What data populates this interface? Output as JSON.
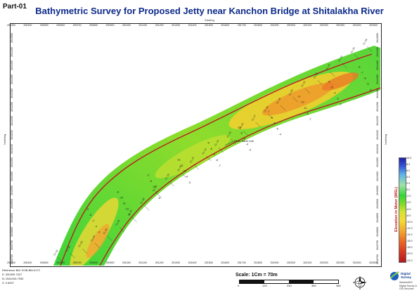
{
  "header": {
    "part": "Part-01",
    "title": "Bathymetric Survey for Proposed Jetty near Kanchon Bridge at Shitalakha River"
  },
  "axes": {
    "easting_title": "Easting",
    "northing_title": "Northing",
    "easting_ticks": [
      "250300",
      "250400",
      "250500",
      "250600",
      "250700",
      "250800",
      "250900",
      "251000",
      "251100",
      "251200",
      "251300",
      "251400",
      "251500",
      "251600",
      "251700",
      "251800",
      "251900",
      "252000",
      "252100",
      "252200",
      "252300",
      "252400",
      "252500"
    ],
    "northing_ticks": [
      "2641500",
      "2641450",
      "2641400",
      "2641350",
      "2641300",
      "2641250",
      "2641200",
      "2641150",
      "2641100",
      "2641050",
      "2641000",
      "2640950",
      "2640900",
      "2640850",
      "2640800",
      "2640750",
      "2640700"
    ]
  },
  "map": {
    "annotation": "River Bank Line",
    "depth_labels": [
      "-5",
      "-6",
      "-7",
      "-4",
      "-3",
      "-8",
      "-10",
      "-11",
      "-12",
      "-9",
      "-2",
      "-6",
      "-5",
      "-7",
      "-8",
      "-11",
      "-11",
      "-12",
      "-4",
      "-3",
      "-5",
      "-6",
      "-9",
      "-8",
      "-7",
      "-10",
      "-5",
      "-6",
      "-4",
      "-3",
      "-7",
      "-8",
      "-6",
      "-5",
      "-4",
      "-9",
      "-10",
      "-11",
      "-8",
      "-7",
      "-6",
      "-5",
      "-4",
      "-3",
      "-2",
      "-6",
      "-7",
      "-8",
      "-5",
      "-4"
    ],
    "section_labels": [
      "CL-01",
      "CL-02",
      "CL-03",
      "CL-04",
      "CL-05",
      "CL-06",
      "CL-07",
      "CL-08",
      "CL-09",
      "CL-10",
      "CL-11",
      "CL-12",
      "CL-13",
      "CL-14",
      "CL-15",
      "CL-16",
      "CL-17",
      "CL-18",
      "CL-19",
      "CL-20",
      "CL-21",
      "CL-22",
      "CL-23",
      "CL-24",
      "CL-25",
      "CL-26"
    ]
  },
  "legend": {
    "title": "Elevation in Meter (MSL)",
    "ticks": [
      "10.0",
      "8.0",
      "6.0",
      "4.0",
      "2.0",
      "0.0",
      "-2.0",
      "-4.0",
      "-6.0",
      "-8.0",
      "-10.0",
      "-12.0",
      "-14.0",
      "-16.0",
      "-18.0",
      "-20.0",
      "-22.0"
    ]
  },
  "reference": {
    "line1": "Reference BM: SOB-BM-0172",
    "line2": "E: 250309.7027",
    "line3": "N: 2641153.7930",
    "line4": "Z: 0.6907"
  },
  "scale": {
    "label": "Scale: 1Cm = 70m",
    "ticks": [
      "0",
      "120",
      "240",
      "360",
      "480"
    ]
  },
  "logo": {
    "name": "Digital Survey",
    "sub1": "SentinelGIS",
    "sub2": "Digital Survey & GIS Services"
  }
}
